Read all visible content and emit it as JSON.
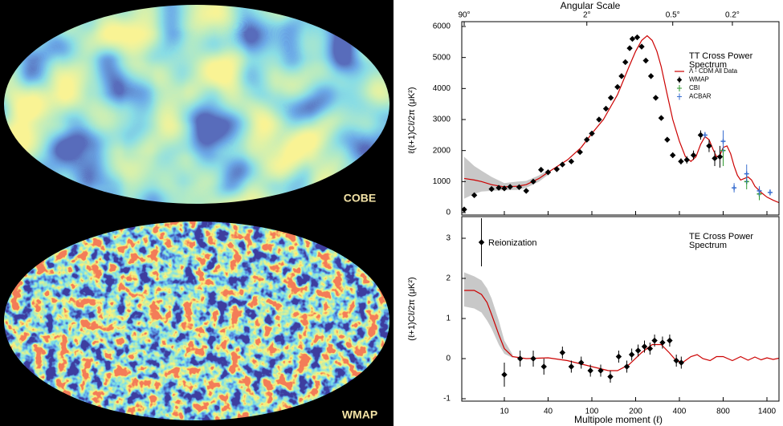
{
  "sky_maps": {
    "labels": [
      "COBE",
      "WMAP"
    ]
  },
  "chart_data": [
    {
      "type": "errorbar",
      "x2label": "Angular Scale",
      "x2ticks": [
        {
          "value": 90,
          "label": "90°"
        },
        {
          "value": 2,
          "label": "2°"
        },
        {
          "value": 0.5,
          "label": "0.5°"
        },
        {
          "value": 0.2,
          "label": "0.2°"
        }
      ],
      "ylabel": "ℓ(ℓ+1)Cℓ/2π (μK²)",
      "xlim": [
        2,
        1600
      ],
      "xticks": [
        10,
        40,
        100,
        200,
        400,
        800,
        1400
      ],
      "ylim": [
        0,
        6000
      ],
      "yticks": [
        0,
        1000,
        2000,
        3000,
        4000,
        5000,
        6000
      ],
      "annotations": [
        {
          "lines": [
            "TT Cross Power",
            "Spectrum"
          ]
        }
      ],
      "series": [
        {
          "kind": "band",
          "color": "#c8c8c8",
          "x": [
            2,
            3,
            4,
            6,
            10,
            15,
            20,
            30,
            40
          ],
          "upper": [
            1800,
            1500,
            1350,
            1150,
            950,
            1000,
            1020,
            1200,
            1380
          ],
          "lower": [
            450,
            600,
            680,
            700,
            720,
            730,
            800,
            1000,
            1220
          ]
        },
        {
          "name": "Λ - CDM All Data",
          "kind": "line",
          "color": "#cc0000",
          "x": [
            2,
            3,
            4,
            6,
            10,
            15,
            20,
            30,
            40,
            60,
            80,
            100,
            120,
            150,
            180,
            200,
            220,
            240,
            260,
            280,
            300,
            330,
            360,
            400,
            440,
            480,
            520,
            560,
            600,
            640,
            680,
            720,
            760,
            800,
            840,
            880,
            920,
            960,
            1000,
            1050,
            1100,
            1150,
            1200,
            1300,
            1400,
            1500,
            1600
          ],
          "values": [
            1100,
            1050,
            1000,
            900,
            830,
            850,
            900,
            1100,
            1300,
            1700,
            2100,
            2550,
            3000,
            3800,
            4700,
            5200,
            5550,
            5700,
            5550,
            5200,
            4700,
            3800,
            3000,
            2300,
            1800,
            1650,
            1800,
            2200,
            2450,
            2350,
            2050,
            1800,
            1850,
            2100,
            2150,
            1900,
            1500,
            1200,
            1050,
            1100,
            1150,
            1050,
            850,
            650,
            500,
            400,
            320
          ]
        },
        {
          "name": "WMAP",
          "kind": "points",
          "marker": "diamond",
          "color": "#000000",
          "x": [
            2,
            3,
            6,
            8,
            10,
            12,
            16,
            20,
            25,
            32,
            40,
            48,
            54,
            65,
            78,
            90,
            100,
            112,
            125,
            135,
            150,
            160,
            170,
            182,
            190,
            205,
            220,
            235,
            255,
            275,
            300,
            330,
            360,
            410,
            450,
            500,
            560,
            640,
            700,
            760
          ],
          "values": [
            100,
            560,
            760,
            800,
            780,
            830,
            820,
            700,
            1000,
            1380,
            1300,
            1400,
            1550,
            1650,
            1950,
            2350,
            2550,
            3000,
            3350,
            3700,
            4050,
            4400,
            4850,
            5300,
            5600,
            5650,
            5350,
            4900,
            4400,
            3700,
            3050,
            2350,
            1850,
            1650,
            1700,
            1850,
            2500,
            2150,
            1750,
            1800
          ],
          "errors": [
            30,
            40,
            40,
            40,
            40,
            40,
            40,
            40,
            40,
            40,
            40,
            40,
            40,
            40,
            40,
            50,
            50,
            50,
            50,
            50,
            60,
            60,
            60,
            60,
            60,
            60,
            60,
            70,
            70,
            70,
            80,
            80,
            90,
            100,
            120,
            150,
            150,
            200,
            250,
            350
          ]
        },
        {
          "name": "CBI",
          "kind": "points",
          "marker": "cross",
          "color": "#2e9a2e",
          "x": [
            800,
            1080,
            1270
          ],
          "values": [
            2000,
            1000,
            600
          ],
          "errors": [
            500,
            250,
            200
          ]
        },
        {
          "name": "ACBAR",
          "kind": "points",
          "marker": "cross",
          "color": "#3a6fd0",
          "x": [
            600,
            800,
            920,
            1080,
            1270,
            1450
          ],
          "values": [
            2500,
            2300,
            800,
            1250,
            700,
            650
          ],
          "errors": [
            100,
            350,
            150,
            300,
            150,
            100
          ]
        }
      ]
    },
    {
      "type": "errorbar",
      "ylabel": "(ℓ+1)Cℓ/2π (μK²)",
      "xlabel": "Multipole moment (ℓ)",
      "xlim": [
        2,
        1600
      ],
      "xticks": [
        10,
        40,
        100,
        200,
        400,
        800,
        1400
      ],
      "ylim": [
        -1,
        3.5
      ],
      "yticks": [
        -1,
        0,
        1,
        2,
        3
      ],
      "annotations": [
        {
          "lines": [
            "TE Cross Power",
            "Spectrum"
          ]
        },
        {
          "lines": [
            "Reionization"
          ]
        }
      ],
      "series": [
        {
          "kind": "band",
          "color": "#c8c8c8",
          "x": [
            2,
            3,
            4,
            5,
            6,
            8,
            10,
            13
          ],
          "upper": [
            2.15,
            2.05,
            1.95,
            1.75,
            1.5,
            0.95,
            0.45,
            0.1
          ],
          "lower": [
            1.3,
            1.25,
            1.15,
            0.95,
            0.75,
            0.35,
            0.12,
            0.02
          ]
        },
        {
          "kind": "line",
          "color": "#cc0000",
          "x": [
            2,
            3,
            4,
            5,
            6,
            8,
            10,
            13,
            20,
            40,
            60,
            100,
            130,
            150,
            180,
            220,
            260,
            300,
            340,
            380,
            420,
            480,
            530,
            580,
            650,
            720,
            800,
            900,
            1000,
            1100,
            1200,
            1300,
            1400,
            1500,
            1600
          ],
          "values": [
            1.7,
            1.7,
            1.6,
            1.4,
            1.1,
            0.6,
            0.25,
            0.05,
            0.0,
            0.02,
            -0.05,
            -0.2,
            -0.3,
            -0.3,
            -0.15,
            0.15,
            0.35,
            0.35,
            0.15,
            -0.05,
            -0.1,
            0.05,
            0.1,
            0.0,
            -0.05,
            0.05,
            0.05,
            -0.05,
            0.05,
            -0.04,
            0.04,
            -0.03,
            0.02,
            -0.02,
            0.01
          ]
        },
        {
          "kind": "points",
          "marker": "diamond",
          "color": "#000000",
          "x": [
            4,
            10,
            16.5,
            25,
            35,
            54,
            65,
            80,
            97,
            115,
            134,
            153,
            174,
            188,
            208,
            230,
            251,
            270,
            306,
            343,
            381,
            412
          ],
          "values": [
            2.9,
            -0.4,
            0.0,
            0.0,
            -0.2,
            0.15,
            -0.2,
            -0.1,
            -0.3,
            -0.3,
            -0.45,
            0.05,
            -0.2,
            0.1,
            0.2,
            0.3,
            0.25,
            0.45,
            0.4,
            0.45,
            -0.05,
            -0.1
          ],
          "errors": [
            0.6,
            0.3,
            0.2,
            0.2,
            0.2,
            0.15,
            0.15,
            0.15,
            0.15,
            0.15,
            0.15,
            0.15,
            0.15,
            0.15,
            0.15,
            0.15,
            0.15,
            0.15,
            0.15,
            0.15,
            0.15,
            0.15
          ]
        }
      ]
    }
  ]
}
